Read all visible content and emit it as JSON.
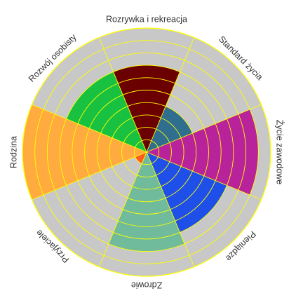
{
  "chart_data": {
    "type": "polar-area",
    "title": "",
    "max_value": 10,
    "ring_count": 10,
    "grid": true,
    "colors": {
      "background": "#c8c8c8",
      "grid": "#ffff00",
      "outline": "#ffff00",
      "label": "#333333"
    },
    "categories": [
      "Rozrywka i rekreacja",
      "Standard życia",
      "Życie zawodowe",
      "Pieniądze",
      "Zdrowie",
      "Przyjaciele",
      "Rodzina",
      "Rozwój osobisty"
    ],
    "values": [
      7,
      4,
      9,
      7,
      8,
      1,
      10,
      7
    ],
    "segment_colors": [
      "#6b0000",
      "#2f6e8f",
      "#b8229a",
      "#1e4fe8",
      "#6fbb9c",
      "#ff5a1f",
      "#ffab3f",
      "#18c240"
    ]
  }
}
